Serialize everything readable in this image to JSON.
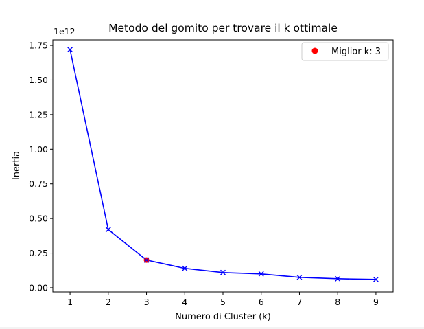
{
  "chart_data": {
    "type": "line",
    "title": "Metodo del gomito per trovare il k ottimale",
    "xlabel": "Numero di Cluster (k)",
    "ylabel": "Inertia",
    "y_offset_text": "1e12",
    "y_multiplier": 1000000000000.0,
    "xlim": [
      0.55,
      9.45
    ],
    "ylim": [
      -0.03,
      1.79
    ],
    "xticks": [
      1,
      2,
      3,
      4,
      5,
      6,
      7,
      8,
      9
    ],
    "yticks": [
      0.0,
      0.25,
      0.5,
      0.75,
      1.0,
      1.25,
      1.5,
      1.75
    ],
    "ytick_labels": [
      "0.00",
      "0.25",
      "0.50",
      "0.75",
      "1.00",
      "1.25",
      "1.50",
      "1.75"
    ],
    "grid": false,
    "legend_position": "top-right",
    "series": [
      {
        "x": [
          1,
          2,
          3,
          4,
          5,
          6,
          7,
          8,
          9
        ],
        "y": [
          1.72,
          0.42,
          0.2,
          0.14,
          0.11,
          0.1,
          0.075,
          0.065,
          0.06
        ],
        "color": "#0000ff",
        "marker": "x",
        "style": "line"
      },
      {
        "name": "Miglior k: 3",
        "x": [
          3
        ],
        "y": [
          0.2
        ],
        "color": "#ff0000",
        "marker": "o",
        "style": "scatter"
      }
    ],
    "legend": [
      {
        "label": "Miglior k: 3",
        "color": "#ff0000",
        "marker": "o"
      }
    ]
  }
}
